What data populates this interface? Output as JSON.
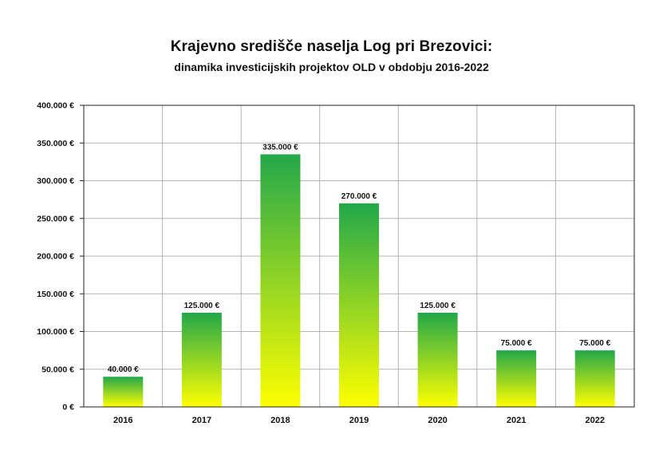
{
  "chart_data": {
    "type": "bar",
    "title": "Krajevno središče naselja Log pri Brezovici:",
    "subtitle": "dinamika investicijskih projektov OLD v obdobju 2016-2022",
    "categories": [
      "2016",
      "2017",
      "2018",
      "2019",
      "2020",
      "2021",
      "2022"
    ],
    "values": [
      40000,
      125000,
      335000,
      270000,
      125000,
      75000,
      75000
    ],
    "data_labels": [
      "40.000 €",
      "125.000 €",
      "335.000 €",
      "270.000 €",
      "125.000 €",
      "75.000 €",
      "75.000 €"
    ],
    "ylim": [
      0,
      400000
    ],
    "yticks": [
      0,
      50000,
      100000,
      150000,
      200000,
      250000,
      300000,
      350000,
      400000
    ],
    "ytick_labels": [
      "0 €",
      "50.000 €",
      "100.000 €",
      "150.000 €",
      "200.000 €",
      "250.000 €",
      "300.000 €",
      "350.000 €",
      "400.000 €"
    ],
    "grid": true,
    "bar_gradient": {
      "top": "#22a84a",
      "bottom": "#ffff00"
    },
    "grid_color": "#b3b3b3",
    "axis_color": "#222222"
  }
}
